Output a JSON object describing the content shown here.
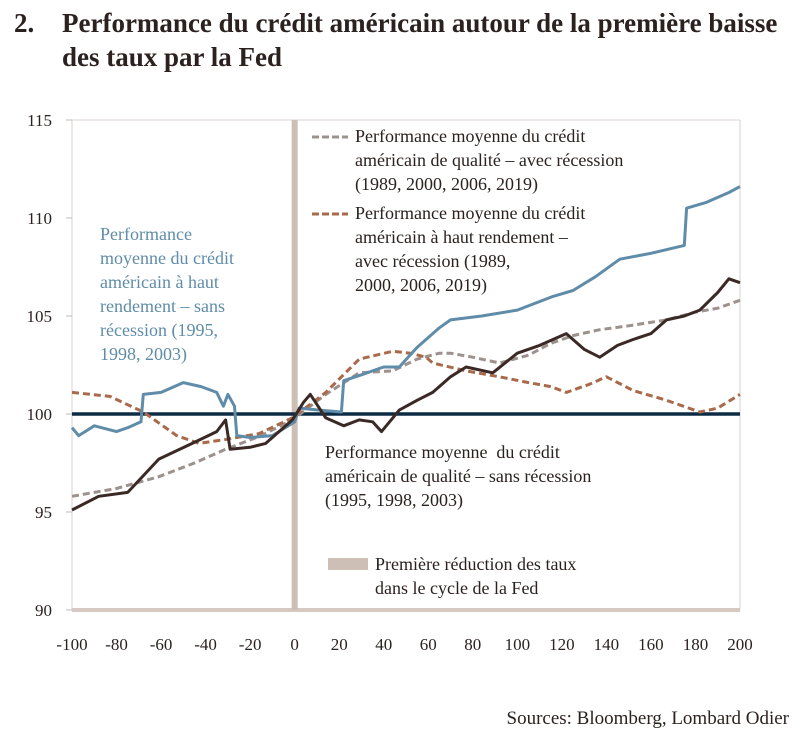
{
  "title": {
    "number": "2.",
    "text": "Performance du crédit américain autour de la première baisse des taux par la Fed"
  },
  "sources": "Sources: Bloomberg, Lombard Odier",
  "colors": {
    "hy_no_recession": "#5f8ca8",
    "ig_no_recession": "#3b2926",
    "ig_recession": "#9c918c",
    "hy_recession": "#a86a4a",
    "baseline": "#0e2b45",
    "rate_cut": "#cdbeb6"
  },
  "chart_data": {
    "type": "line",
    "xlim": [
      -100,
      200
    ],
    "ylim": [
      90,
      115
    ],
    "xticks": [
      "-100",
      "-80",
      "-60",
      "-40",
      "-20",
      "0",
      "20",
      "40",
      "60",
      "80",
      "100",
      "120",
      "140",
      "160",
      "180",
      "200"
    ],
    "yticks": [
      "90",
      "95",
      "100",
      "105",
      "110",
      "115"
    ],
    "grid": false,
    "baseline": 100,
    "rate_cut_x": 0,
    "series": [
      {
        "key": "ig_recession",
        "name": "Performance moyenne du crédit américain de qualité – avec récession (1989, 2000, 2006, 2019)",
        "style": "dashed",
        "x": [
          -100,
          -80,
          -61,
          -45,
          -31,
          -15,
          -1,
          14,
          29,
          44,
          55,
          65,
          70,
          80,
          92,
          105,
          115,
          125,
          137,
          150,
          167,
          180,
          190,
          200
        ],
        "y": [
          95.8,
          96.2,
          96.8,
          97.5,
          98.2,
          98.9,
          99.7,
          101.0,
          102.1,
          102.2,
          102.8,
          103.1,
          103.1,
          102.9,
          102.6,
          103.0,
          103.6,
          104.0,
          104.3,
          104.5,
          104.8,
          105.2,
          105.4,
          105.8
        ]
      },
      {
        "key": "hy_recession",
        "name": "Performance moyenne du crédit américain à haut rendement – avec récession (1989, 2000, 2006, 2019)",
        "style": "dashed",
        "x": [
          -100,
          -83,
          -68,
          -53,
          -43,
          -31,
          -16,
          -1,
          14,
          29,
          44,
          52,
          59,
          62,
          77,
          92,
          105,
          115,
          122,
          132,
          140,
          152,
          167,
          182,
          190,
          200
        ],
        "y": [
          101.1,
          100.9,
          100.1,
          98.9,
          98.5,
          98.7,
          99.0,
          99.8,
          101.1,
          102.8,
          103.2,
          103.1,
          102.9,
          102.6,
          102.2,
          101.9,
          101.6,
          101.4,
          101.1,
          101.5,
          101.9,
          101.2,
          100.7,
          100.1,
          100.3,
          101.0
        ]
      },
      {
        "key": "hy_no_recession",
        "name": "Performance moyenne du crédit américain à haut rendement – sans récession (1995, 1998, 2003)",
        "style": "solid",
        "x": [
          -100,
          -97,
          -90,
          -80,
          -75,
          -69,
          -68,
          -60,
          -50,
          -42,
          -35,
          -32,
          -30,
          -27,
          -26,
          -20,
          -10,
          0,
          2,
          11,
          21,
          22,
          30,
          40,
          47,
          55,
          65,
          70,
          84,
          100,
          116,
          125,
          135,
          146,
          160,
          175,
          176,
          185,
          195,
          200
        ],
        "y": [
          99.3,
          98.9,
          99.4,
          99.1,
          99.3,
          99.6,
          101.0,
          101.1,
          101.6,
          101.4,
          101.1,
          100.4,
          101.0,
          100.4,
          98.9,
          98.8,
          98.9,
          99.6,
          100.3,
          100.2,
          100.1,
          101.7,
          102.0,
          102.4,
          102.4,
          103.4,
          104.4,
          104.8,
          105.0,
          105.3,
          106.0,
          106.3,
          107.0,
          107.9,
          108.2,
          108.6,
          110.5,
          110.8,
          111.3,
          111.6
        ]
      },
      {
        "key": "ig_no_recession",
        "name": "Performance moyenne  du crédit américain de qualité – sans récession (1995, 1998, 2003)",
        "style": "solid",
        "x": [
          -100,
          -88,
          -75,
          -61,
          -46,
          -35,
          -31,
          -29,
          -20,
          -13,
          -1,
          4,
          7,
          14,
          22,
          29,
          35,
          39,
          47,
          55,
          62,
          70,
          77,
          89,
          100,
          110,
          122,
          130,
          137,
          145,
          152,
          160,
          167,
          175,
          182,
          190,
          195,
          200
        ],
        "y": [
          95.1,
          95.8,
          96.0,
          97.7,
          98.5,
          99.1,
          99.7,
          98.2,
          98.3,
          98.5,
          99.7,
          100.6,
          101.0,
          99.8,
          99.4,
          99.7,
          99.6,
          99.1,
          100.2,
          100.7,
          101.1,
          101.9,
          102.4,
          102.1,
          103.1,
          103.5,
          104.1,
          103.3,
          102.9,
          103.5,
          103.8,
          104.1,
          104.8,
          105.0,
          105.3,
          106.2,
          106.9,
          106.7
        ]
      }
    ],
    "annotations": {
      "hy_no_recession": [
        "Performance",
        "moyenne du crédit",
        "américain à haut",
        "rendement – sans",
        "récession (1995,",
        "1998, 2003)"
      ],
      "legend_ig_recession": [
        "Performance moyenne du crédit",
        "américain de qualité – avec récession",
        "(1989, 2000, 2006, 2019)"
      ],
      "legend_hy_recession": [
        "Performance moyenne du crédit",
        "américain à haut rendement –",
        "avec récession (1989,",
        "2000, 2006, 2019)"
      ],
      "ig_no_recession": [
        "Performance moyenne  du crédit",
        "américain de qualité – sans récession",
        "(1995, 1998, 2003)"
      ],
      "rate_cut": [
        "Première réduction des taux",
        "dans le cycle de la Fed"
      ]
    }
  }
}
